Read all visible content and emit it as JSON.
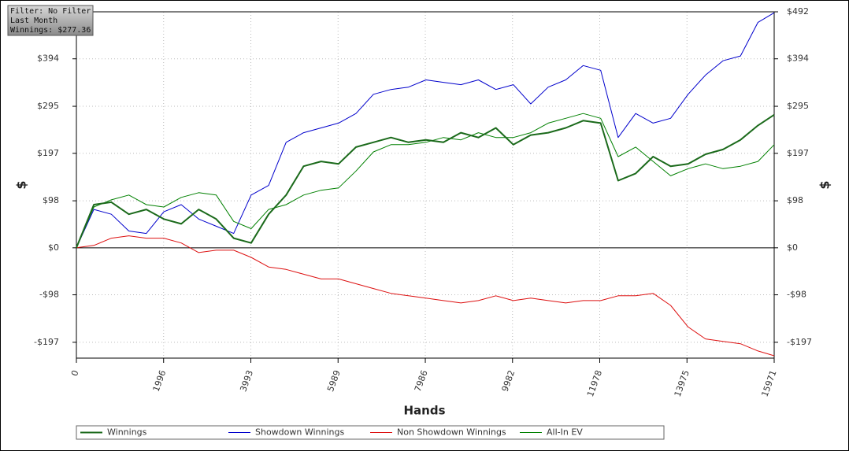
{
  "chart_data": {
    "type": "line",
    "annotation": [
      "Filter: No Filter",
      "Last Month",
      "Winnings: $277.36"
    ],
    "xlabel": "Hands",
    "ylabel": "$",
    "x": [
      0,
      400,
      800,
      1200,
      1600,
      2000,
      2400,
      2800,
      3200,
      3600,
      4000,
      4400,
      4800,
      5200,
      5600,
      6000,
      6400,
      6800,
      7200,
      7600,
      8000,
      8400,
      8800,
      9200,
      9600,
      10000,
      10400,
      10800,
      11200,
      11600,
      12000,
      12400,
      12800,
      13200,
      13600,
      14000,
      14400,
      14800,
      15200,
      15600,
      15971
    ],
    "series": [
      {
        "name": "Winnings",
        "color": "#1b6a1b",
        "width": 2,
        "values": [
          0,
          90,
          95,
          70,
          80,
          60,
          50,
          80,
          60,
          20,
          10,
          70,
          110,
          170,
          180,
          175,
          210,
          220,
          230,
          220,
          225,
          220,
          240,
          230,
          250,
          215,
          235,
          240,
          250,
          265,
          260,
          140,
          155,
          190,
          170,
          175,
          195,
          205,
          225,
          255,
          277.36
        ]
      },
      {
        "name": "Showdown Winnings",
        "color": "#0000cc",
        "width": 1,
        "values": [
          0,
          80,
          70,
          35,
          30,
          75,
          90,
          60,
          45,
          30,
          110,
          130,
          220,
          240,
          250,
          260,
          280,
          320,
          330,
          335,
          350,
          345,
          340,
          350,
          330,
          340,
          300,
          335,
          350,
          380,
          370,
          230,
          280,
          260,
          270,
          320,
          360,
          390,
          400,
          470,
          490
        ]
      },
      {
        "name": "Non Showdown Winnings",
        "color": "#dd1111",
        "width": 1,
        "values": [
          0,
          5,
          20,
          25,
          20,
          20,
          10,
          -10,
          -5,
          -5,
          -20,
          -40,
          -45,
          -55,
          -65,
          -65,
          -75,
          -85,
          -95,
          -100,
          -105,
          -110,
          -115,
          -110,
          -100,
          -110,
          -105,
          -110,
          -115,
          -110,
          -110,
          -100,
          -100,
          -95,
          -120,
          -165,
          -190,
          -195,
          -200,
          -215,
          -225
        ]
      },
      {
        "name": "All-In EV",
        "color": "#008000",
        "width": 1,
        "values": [
          0,
          85,
          100,
          110,
          90,
          85,
          105,
          115,
          110,
          55,
          40,
          80,
          90,
          110,
          120,
          125,
          160,
          200,
          215,
          215,
          220,
          230,
          225,
          240,
          230,
          230,
          240,
          260,
          270,
          280,
          270,
          190,
          210,
          180,
          150,
          165,
          175,
          165,
          170,
          180,
          215
        ]
      }
    ],
    "xlim": [
      0,
      15971
    ],
    "xticks": [
      0,
      1996,
      3993,
      5989,
      7986,
      9982,
      11978,
      13975,
      15971
    ],
    "ylim": [
      -230,
      492
    ],
    "yticks": [
      {
        "value": -197,
        "label": "-$197"
      },
      {
        "value": -98,
        "label": "-$98"
      },
      {
        "value": 0,
        "label": "$0"
      },
      {
        "value": 98,
        "label": "$98"
      },
      {
        "value": 197,
        "label": "$197"
      },
      {
        "value": 295,
        "label": "$295"
      },
      {
        "value": 394,
        "label": "$394"
      },
      {
        "value": 492,
        "label": "$492"
      }
    ],
    "grid": true,
    "legend": "bottom"
  }
}
